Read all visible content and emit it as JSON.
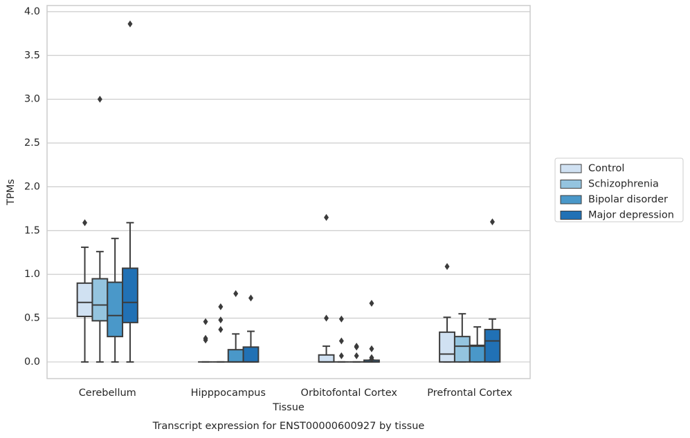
{
  "chart_data": {
    "type": "box",
    "title": "Transcript expression for ENST00000600927 by tissue",
    "x_label": "Tissue",
    "y_label": "TPMs",
    "categories": [
      "Cerebellum",
      "Hipppocampus",
      "Orbitofontal Cortex",
      "Prefrontal Cortex"
    ],
    "ylim": [
      -0.19,
      4.07
    ],
    "yticks": [
      {
        "value": 0,
        "label": "0.0"
      },
      0.5,
      {
        "value": 1,
        "label": "1.0"
      },
      1.5,
      {
        "value": 2,
        "label": "2.0"
      },
      2.5,
      {
        "value": 3,
        "label": "3.0"
      },
      3.5,
      {
        "value": 4,
        "label": "4.0"
      }
    ],
    "grid": true,
    "legend_position": "right",
    "series": [
      {
        "name": "Control",
        "color": "#d0e1f2",
        "min": [
          0,
          0,
          0,
          0
        ],
        "q1": [
          0.52,
          0,
          0,
          0
        ],
        "median": [
          0.68,
          0,
          0,
          0.09
        ],
        "q3": [
          0.9,
          0,
          0.08,
          0.34
        ],
        "max": [
          1.31,
          0,
          0.18,
          0.51
        ],
        "outliers": [
          [
            1.59
          ],
          [
            0.46,
            0.27,
            0.25
          ],
          [
            1.65,
            0.5
          ],
          [
            1.09
          ]
        ]
      },
      {
        "name": "Schizophrenia",
        "color": "#94c4df",
        "min": [
          0,
          0,
          0,
          0
        ],
        "q1": [
          0.47,
          0,
          0,
          0
        ],
        "median": [
          0.65,
          0,
          0,
          0.18
        ],
        "q3": [
          0.95,
          0,
          0,
          0.29
        ],
        "max": [
          1.26,
          0,
          0,
          0.55
        ],
        "outliers": [
          [
            3.0
          ],
          [
            0.63,
            0.48,
            0.37
          ],
          [
            0.49,
            0.24,
            0.07
          ],
          []
        ]
      },
      {
        "name": "Bipolar disorder",
        "color": "#4a98c9",
        "min": [
          0,
          0,
          0,
          0
        ],
        "q1": [
          0.29,
          0,
          0,
          0
        ],
        "median": [
          0.53,
          0,
          0,
          0.18
        ],
        "q3": [
          0.91,
          0.14,
          0,
          0.19
        ],
        "max": [
          1.41,
          0.32,
          0,
          0.4
        ],
        "outliers": [
          [],
          [
            0.78
          ],
          [
            0.18,
            0.17,
            0.07
          ],
          []
        ]
      },
      {
        "name": "Major depression",
        "color": "#2171b5",
        "min": [
          0,
          0,
          0,
          0
        ],
        "q1": [
          0.45,
          0,
          0,
          0
        ],
        "median": [
          0.68,
          0,
          0,
          0.24
        ],
        "q3": [
          1.07,
          0.17,
          0.02,
          0.37
        ],
        "max": [
          1.59,
          0.35,
          0.02,
          0.49
        ],
        "outliers": [
          [
            3.86
          ],
          [
            0.73
          ],
          [
            0.67,
            0.15,
            0.05,
            0.03
          ],
          [
            1.6
          ]
        ]
      }
    ]
  }
}
